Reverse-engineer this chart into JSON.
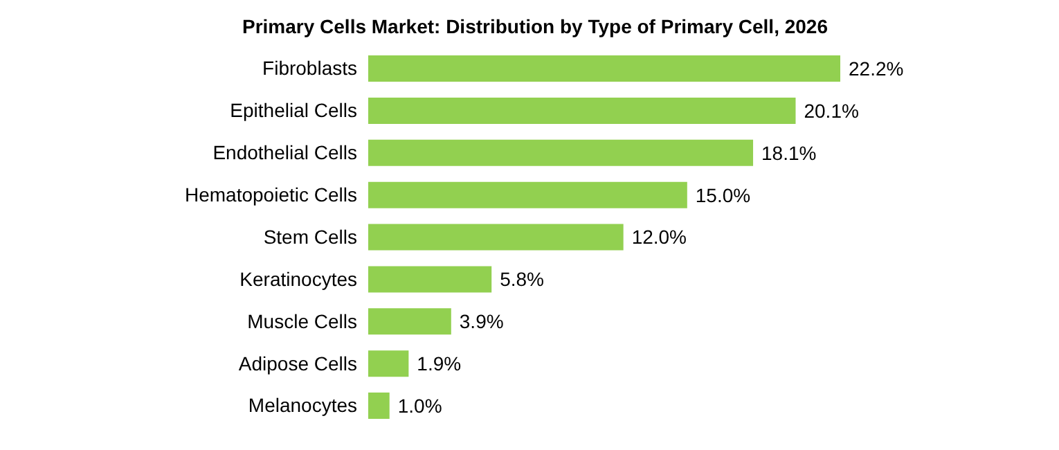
{
  "chart_data": {
    "type": "bar",
    "orientation": "horizontal",
    "title": "Primary Cells Market: Distribution by Type of Primary Cell, 2026",
    "categories": [
      "Fibroblasts",
      "Epithelial Cells",
      "Endothelial Cells",
      "Hematopoietic Cells",
      "Stem Cells",
      "Keratinocytes",
      "Muscle Cells",
      "Adipose Cells",
      "Melanocytes"
    ],
    "values": [
      22.2,
      20.1,
      18.1,
      15.0,
      12.0,
      5.8,
      3.9,
      1.9,
      1.0
    ],
    "value_labels": [
      "22.2%",
      "20.1%",
      "18.1%",
      "15.0%",
      "12.0%",
      "5.8%",
      "3.9%",
      "1.9%",
      "1.0%"
    ],
    "color": "#92d050",
    "grid": false,
    "legend": false
  }
}
